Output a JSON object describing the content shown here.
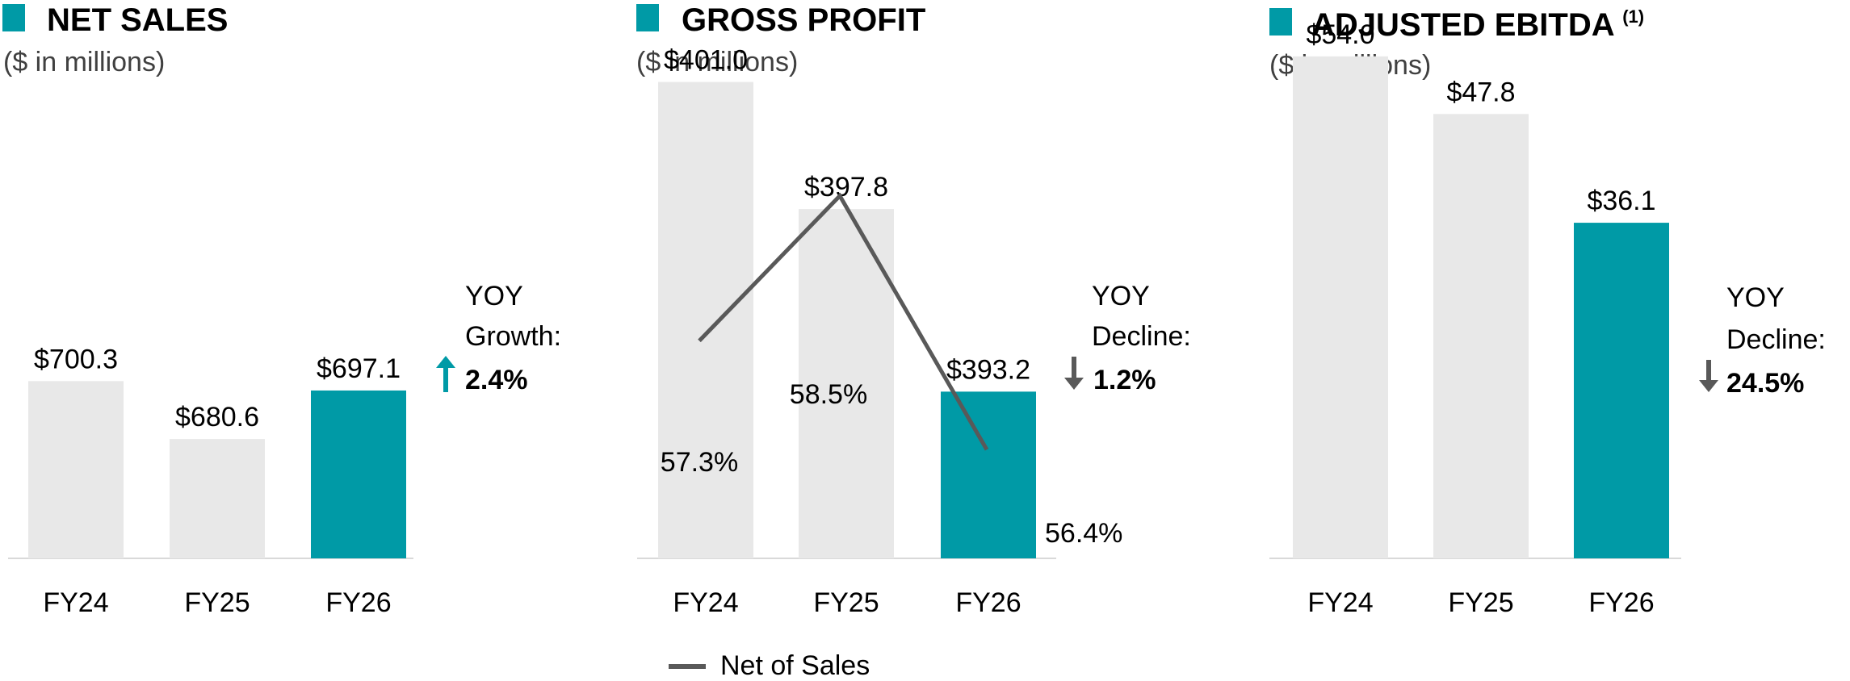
{
  "colors": {
    "accent": "#009aa6",
    "bar_gray": "#e8e8e8",
    "axis": "#d9d9d9",
    "line": "#595959",
    "arrow_up": "#009aa6",
    "arrow_down": "#595959",
    "text": "#1a1a1a"
  },
  "chart_data": [
    {
      "type": "bar",
      "title": "NET SALES",
      "subtitle": "($ in millions)",
      "categories": [
        "FY24",
        "FY25",
        "FY26"
      ],
      "values": [
        700.3,
        680.6,
        697.1
      ],
      "value_labels": [
        "$700.3",
        "$680.6",
        "$697.1"
      ],
      "highlight_index": 2,
      "ylim": [
        640,
        825
      ],
      "yoy": {
        "line1": "YOY",
        "line2": "Growth:",
        "value": "2.4%",
        "direction": "up"
      }
    },
    {
      "type": "bar",
      "title": "GROSS PROFIT",
      "subtitle": "($ in millions)",
      "categories": [
        "FY24",
        "FY25",
        "FY26"
      ],
      "values": [
        401.0,
        397.8,
        393.2
      ],
      "value_labels": [
        "$401.0",
        "$397.8",
        "$393.2"
      ],
      "highlight_index": 2,
      "ylim": [
        389,
        402.7
      ],
      "yoy": {
        "line1": "YOY",
        "line2": "Decline:",
        "value": "1.2%",
        "direction": "down"
      },
      "line_series": {
        "name": "Net of Sales",
        "values": [
          57.3,
          58.5,
          56.4
        ],
        "value_labels": [
          "57.3%",
          "58.5%",
          "56.4%"
        ],
        "ylim": [
          55.5,
          60.0
        ]
      }
    },
    {
      "type": "bar",
      "title": "ADJUSTED EBITDA",
      "title_superscript": "(1)",
      "subtitle": "($ in millions)",
      "categories": [
        "FY24",
        "FY25",
        "FY26"
      ],
      "values": [
        54.0,
        47.8,
        36.1
      ],
      "value_labels": [
        "$54.0",
        "$47.8",
        "$36.1"
      ],
      "highlight_index": 2,
      "ylim": [
        0,
        58.5
      ],
      "yoy": {
        "line1": "YOY",
        "line2": "Decline:",
        "value": "24.5%",
        "direction": "down"
      }
    }
  ],
  "legend": {
    "label": "Net of Sales"
  }
}
